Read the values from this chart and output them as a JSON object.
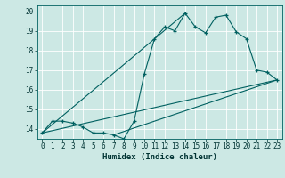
{
  "xlabel": "Humidex (Indice chaleur)",
  "bg_color": "#cce8e4",
  "grid_color": "#ffffff",
  "line_color": "#006060",
  "xlim": [
    -0.5,
    23.5
  ],
  "ylim": [
    13.5,
    20.3
  ],
  "xticks": [
    0,
    1,
    2,
    3,
    4,
    5,
    6,
    7,
    8,
    9,
    10,
    11,
    12,
    13,
    14,
    15,
    16,
    17,
    18,
    19,
    20,
    21,
    22,
    23
  ],
  "yticks": [
    14,
    15,
    16,
    17,
    18,
    19,
    20
  ],
  "series1_x": [
    0,
    1,
    2,
    3,
    4,
    5,
    6,
    7,
    8,
    9,
    10,
    11,
    12,
    13,
    14,
    15,
    16,
    17,
    18,
    19,
    20,
    21,
    22,
    23
  ],
  "series1_y": [
    13.8,
    14.4,
    14.4,
    14.3,
    14.1,
    13.8,
    13.8,
    13.7,
    13.5,
    14.4,
    16.8,
    18.6,
    19.2,
    19.0,
    19.9,
    19.2,
    18.9,
    19.7,
    19.8,
    18.95,
    18.6,
    17.0,
    16.9,
    16.5
  ],
  "line1_x": [
    0,
    23
  ],
  "line1_y": [
    13.8,
    16.5
  ],
  "line2_x": [
    0,
    14
  ],
  "line2_y": [
    13.8,
    19.9
  ],
  "line3_x": [
    7,
    23
  ],
  "line3_y": [
    13.7,
    16.5
  ]
}
